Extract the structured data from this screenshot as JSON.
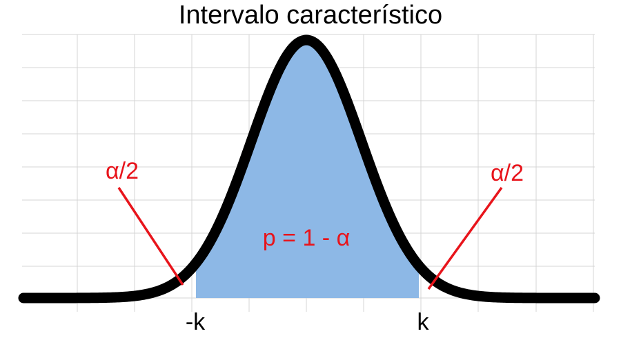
{
  "title": "Intervalo característico",
  "labels": {
    "left_tick": "-k",
    "right_tick": "k",
    "left_tail": "α/2",
    "right_tail": "α/2",
    "center_area": "p = 1 - α"
  },
  "colors": {
    "curve": "#000000",
    "fill": "#8db8e6",
    "annotation": "#e8141b",
    "grid": "#d4d4d4"
  }
}
